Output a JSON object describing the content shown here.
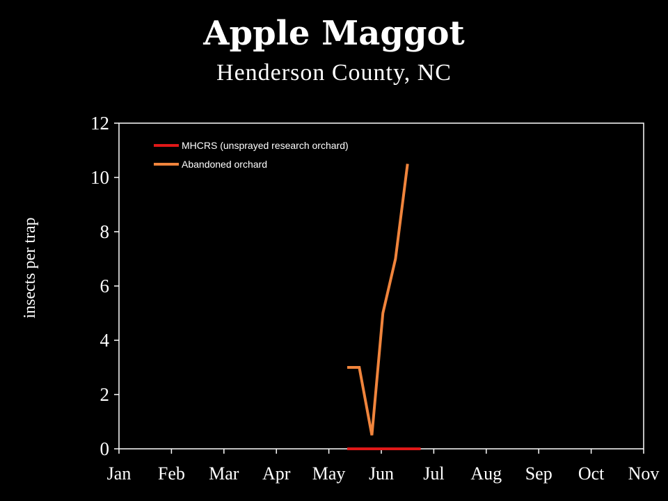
{
  "chart_data": {
    "type": "line",
    "title": "Apple Maggot",
    "subtitle": "Henderson County, NC",
    "xlabel": "",
    "ylabel": "insects per trap",
    "categories": [
      "Jan",
      "Feb",
      "Mar",
      "Apr",
      "May",
      "Jun",
      "Jul",
      "Aug",
      "Sep",
      "Oct",
      "Nov"
    ],
    "y_ticks": [
      "0",
      "2",
      "4",
      "6",
      "8",
      "10",
      "12"
    ],
    "ylim": [
      0,
      12
    ],
    "grid": false,
    "legend_position": "top-left",
    "series": [
      {
        "name": "MHCRS (unsprayed research orchard)",
        "color": "#e01818",
        "points": [
          {
            "month": 5.35,
            "value": 0
          },
          {
            "month": 5.6,
            "value": 0
          },
          {
            "month": 5.85,
            "value": 0
          },
          {
            "month": 6.1,
            "value": 0
          },
          {
            "month": 6.35,
            "value": 0
          },
          {
            "month": 6.6,
            "value": 0
          },
          {
            "month": 6.75,
            "value": 0
          }
        ]
      },
      {
        "name": "Abandoned orchard",
        "color": "#f0843c",
        "points": [
          {
            "month": 5.35,
            "value": 3
          },
          {
            "month": 5.58,
            "value": 3
          },
          {
            "month": 5.82,
            "value": 0.5
          },
          {
            "month": 6.03,
            "value": 5
          },
          {
            "month": 6.27,
            "value": 7
          },
          {
            "month": 6.5,
            "value": 10.5
          }
        ]
      }
    ]
  }
}
